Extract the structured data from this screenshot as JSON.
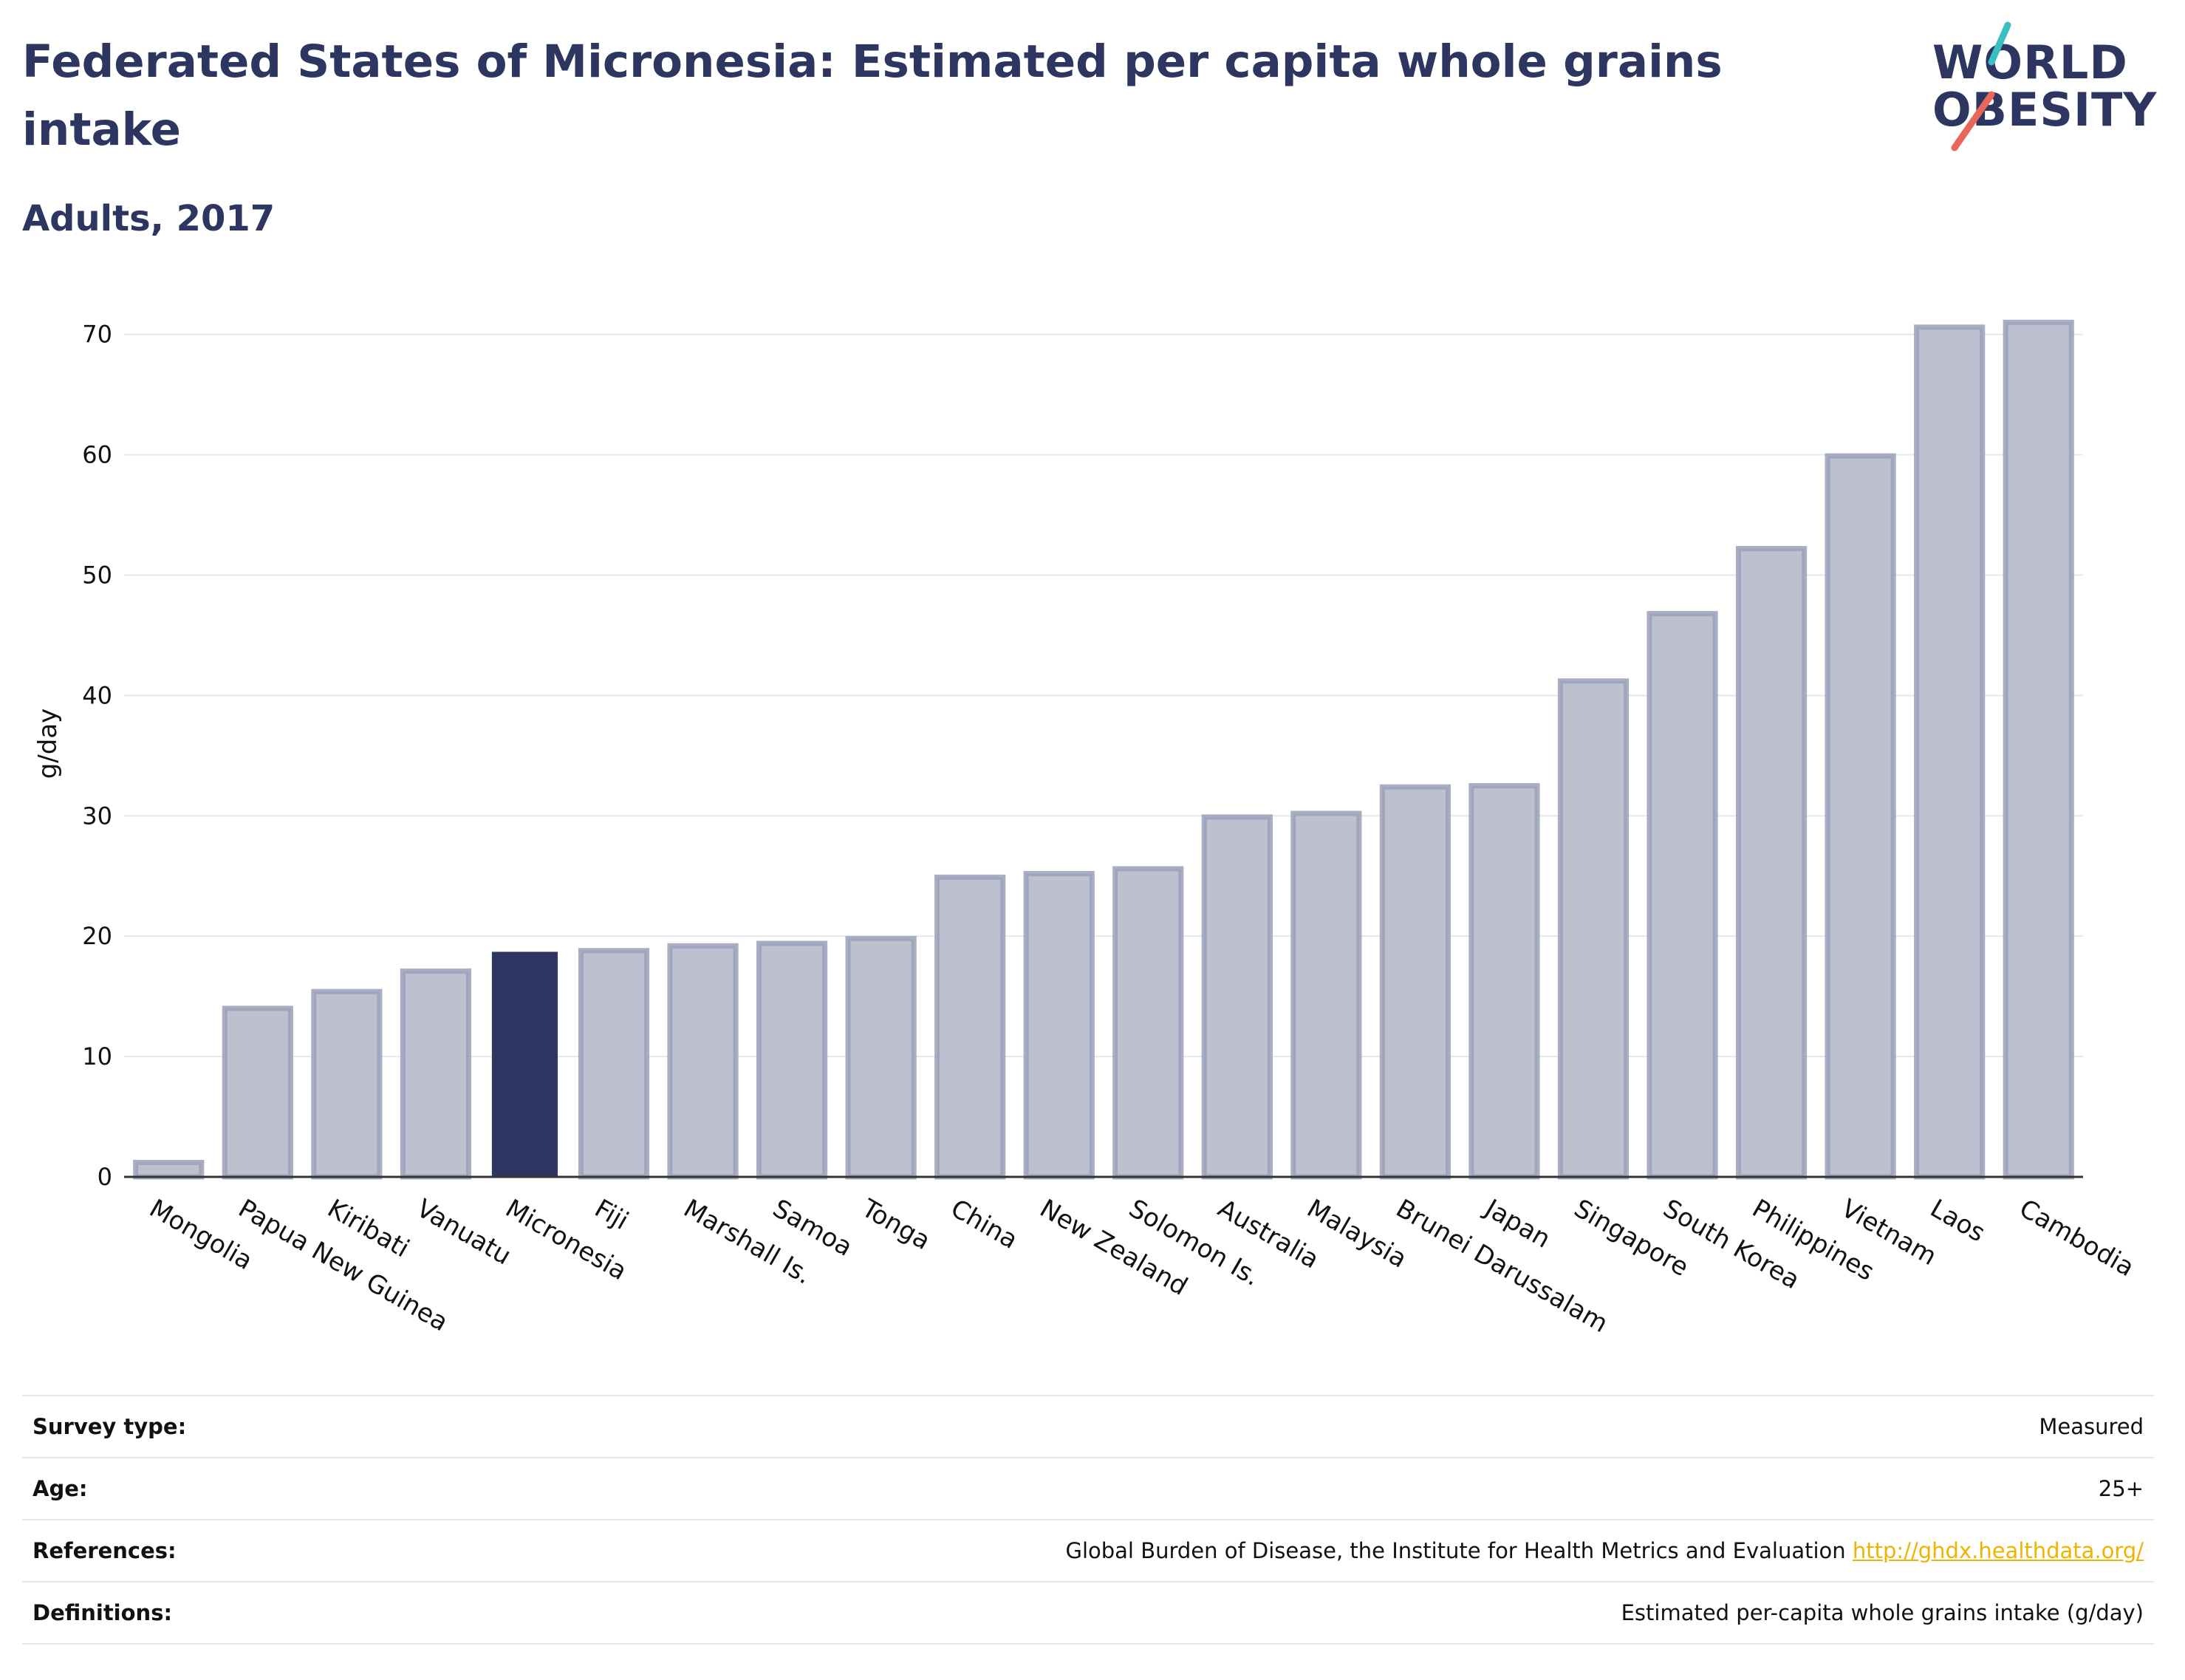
{
  "header": {
    "title": "Federated States of Micronesia: Estimated per capita whole grains intake",
    "subtitle": "Adults, 2017"
  },
  "logo": {
    "line1": "WORLD",
    "line2": "OBESITY",
    "accent_teal": "#3bbfbf",
    "accent_red": "#e8665a"
  },
  "colors": {
    "title": "#2c3660",
    "bar": "#bcc0cf",
    "bar_border": "#9aa0b8",
    "highlight": "#2c3660",
    "grid": "#e6e8ef",
    "link": "#f0b400"
  },
  "chart_data": {
    "type": "bar",
    "ylabel": "g/day",
    "xlabel": "",
    "ylim": [
      0,
      72
    ],
    "yticks": [
      0,
      10,
      20,
      30,
      40,
      50,
      60,
      70
    ],
    "grid": true,
    "highlight": "Micronesia",
    "categories": [
      "Mongolia",
      "Papua New Guinea",
      "Kiribati",
      "Vanuatu",
      "Micronesia",
      "Fiji",
      "Marshall Is.",
      "Samoa",
      "Tonga",
      "China",
      "New Zealand",
      "Solomon Is.",
      "Australia",
      "Malaysia",
      "Brunei Darussalam",
      "Japan",
      "Singapore",
      "South Korea",
      "Philippines",
      "Vietnam",
      "Laos",
      "Cambodia"
    ],
    "values": [
      1.2,
      14.0,
      15.4,
      17.1,
      18.7,
      18.8,
      19.2,
      19.4,
      19.8,
      24.9,
      25.2,
      25.6,
      29.9,
      30.2,
      32.4,
      32.5,
      41.2,
      46.8,
      52.2,
      59.9,
      70.6,
      71.0
    ]
  },
  "meta": {
    "survey_type_label": "Survey type:",
    "survey_type_value": "Measured",
    "age_label": "Age:",
    "age_value": "25+",
    "references_label": "References:",
    "references_value": "Global Burden of Disease, the Institute for Health Metrics and Evaluation",
    "references_link": "http://ghdx.healthdata.org/",
    "definitions_label": "Definitions:",
    "definitions_value": "Estimated per-capita whole grains intake (g/day)"
  }
}
